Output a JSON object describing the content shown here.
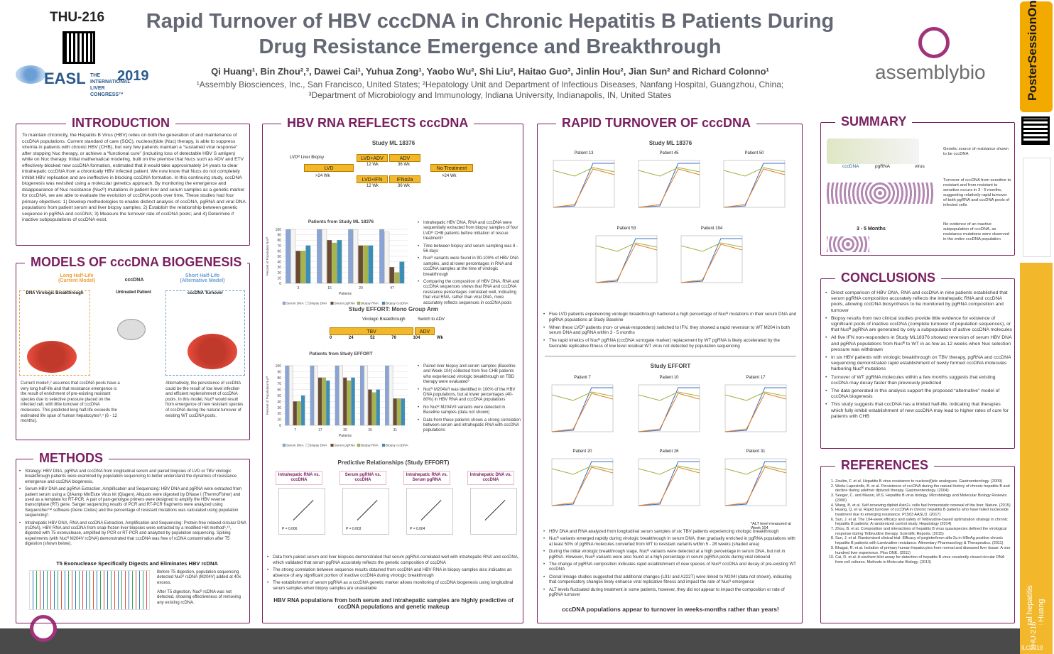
{
  "poster_id": "THU-216",
  "header": {
    "title_line1": "Rapid Turnover of HBV cccDNA in Chronic Hepatitis B Patients During",
    "title_line2": "Drug Resistance Emergence and Breakthrough",
    "authors": "Qi Huang¹, Bin Zhou²,³, Dawei Cai¹, Yuhua Zong¹, Yaobo Wu², Shi Liu², Haitao Guo³, Jinlin Hou², Jian Sun² and Richard Colonno¹",
    "affil1": "¹Assembly Biosciences, Inc., San Francisco, United States; ²Hepatology Unit and Department of Infectious Diseases, Nanfang Hospital, Guangzhou, China;",
    "affil2": "³Department of Microbiology and Immunology, Indiana University, Indianapolis, IN, United States",
    "company": "assemblybio",
    "easl_word": "EASL",
    "easl_conf": "THE INTERNATIONAL LIVER CONGRESS™",
    "easl_year": "2019"
  },
  "colors": {
    "accent": "#7a2060",
    "title_gray": "#646874",
    "gold": "#f2b72b",
    "bar_blue": "#8aa4d6",
    "bar_brown": "#6b4b2f",
    "bar_olive": "#a7b548",
    "bar_teal": "#3a8fb7"
  },
  "sidebar": {
    "pso": "PosterSessionOnline",
    "vertical1": "Viral hepatitis",
    "vertical2": "Qi Huang",
    "vertical3": "THU-216",
    "vertical4": "ILC2019"
  },
  "introduction": {
    "heading": "INTRODUCTION",
    "text": "To maintain chronicity, the Hepatitis B Virus (HBV) relies on both the generation of and maintenance of cccDNA populations. Current standard of care (SOC), nucleos(t)ide (Nuc) therapy, is able to suppress viremia in patients with chronic HBV (CHB), but very few patients maintain a “sustained viral response” after stopping Nuc therapy, or achieve a “functional cure” (including loss of detectable HBV S antigen) while on Nuc therapy. Initial mathematical modeling, built on the premise that Nucs such as ADV and ETV effectively blocked new cccDNA formation, estimated that it would take approximately 14 years to clear intrahepatic cccDNA from a chronically HBV infected patient. We now know that Nucs do not completely inhibit HBV replication and are ineffective in blocking cccDNA formation. In this continuing study, cccDNA biogenesis was revisited using a molecular genetics approach. By monitoring the emergence and disappearance of Nuc resistance (Nucᴿ) mutations in patient liver and serum samples as a genetic marker for cccDNA, we are able to evaluate the evolution of cccDNA pools over time. These studies had four primary objectives: 1) Develop methodologies to enable distinct analysis of cccDNA, pgRNA and viral DNA populations from patient serum and liver biopsy samples; 2) Establish the relationship between genetic sequence in pgRNA and cccDNA; 3) Measure the turnover rate of cccDNA pools; and 4) Determine if inactive subpopulations of cccDNA exist."
  },
  "models": {
    "heading": "MODELS OF cccDNA BIOGENESIS",
    "left_label": "Long Half-Life\n(Current Model)",
    "center_label": "cccDNA",
    "right_label": "Short Half-Life\n(Alternative Model)",
    "panel1": "DNA Virologic Breakthrough",
    "panel2": "Untreated Patient",
    "panel3": "cccDNA Turnover",
    "left_text": "Current model¹,² assumes that cccDNA pools have a very long half-life and that resistance emergence is the result of enrichment of pre-existing resistant species due to selective pressure placed on the infected cell, with little turnover of cccDNA molecules. This predicted long half-life exceeds the estimated life span of human hepatocytes³,⁴ (6 - 12 months).",
    "right_text": "Alternatively, the persistence of cccDNA could be the result of low level infection and efficient replenishment of cccDNA pools. In this model, Nucᴿ would result from emergence of new resistant species of cccDNA during the natural turnover of existing WT cccDNA pools."
  },
  "methods": {
    "heading": "METHODS",
    "bullets": [
      "Strategy: HBV DNA, pgRNA and cccDNA from longitudinal serum and paired biopsies of LVD or TBV virologic breakthrough patients were examined by population sequencing to better understand the dynamics of resistance emergence and cccDNA biogenesis.",
      "Serum HBV DNA and pgRNA Extraction, Amplification and Sequencing: HBV DNA and pgRNA were extracted from patient serum using a QIAamp MinElute Virus kit (Qiagen). Aliquots were digested by DNase I (ThermoFisher) and used as a template for RT-PCR. A pair of pan-genotype primers were designed to amplify the HBV reverse transcriptase (RT) gene. Sanger sequencing results of PCR and RT-PCR fragments were analyzed using Sequencher™ software (Gene Codes) and the percentage of resistant mutations was calculated using population sequencing⁵.",
      "Intrahepatic HBV DNA, RNA and cccDNA Extraction, Amplification and Sequencing: Protein-free relaxed circular DNA (rcDNA), HBV RNA and cccDNA from snap-frozen liver biopsies were extracted by a modified Hirt method⁶,¹⁰, digested with T5 exonuclease, amplified by PCR or RT-PCR and analyzed by population sequencing. Spiking experiments (with Nucᴿ M204V rcDNA) demonstrated that cccDNA was free of rcDNA contamination after T5 digestion (shown below)."
    ],
    "t5_title": "T5 Exonuclease Specifically Digests and Eliminates HBV rcDNA",
    "t5_note1": "Before T5 digestion, population sequencing detected Nucᴿ rcDNA (M204V) added at 40x excess.",
    "t5_note2": "After T5 digestion, Nucᴿ rcDNA was not detected, showing effectiveness of removing any existing rcDNA."
  },
  "hbv_rna": {
    "heading": "HBV RNA REFLECTS cccDNA",
    "study1": "Study ML 18376",
    "flow": {
      "lvd_label": "LVDᴿ Liver Biopsy",
      "lvd": "LVD",
      "lvd_wk": ">24 Wk",
      "lvd_adv": "LVD+ADV",
      "adv": "ADV",
      "wk12a": "12 Wk",
      "wk36a": "36 Wk",
      "lvd_ifn": "LVD+IFN",
      "ifn": "IFNα2a",
      "wk12b": "12 Wk",
      "wk36b": "36 Wk",
      "no_treat": "No Treatment",
      "nt_wk": ">24 Wk"
    },
    "chart1_title": "Patients from Study ML 18376",
    "chart1_bullets": [
      "Intrahepatic HBV DNA, RNA and cccDNA were sequentially extracted from biopsy samples of four LVDᴿ CHB patients before initiation of rescue treatment⁸",
      "Time between biopsy and serum sampling was 8 - 56 days",
      "Nucᴿ variants were found in 90-100% of HBV DNA samples, and at lower percentages in RNA and cccDNA samples at the time of virologic breakthrough",
      "Comparing the composition of HBV DNA, RNA and cccDNA sequences shows that RNA and cccDNA resistance percentages correlated well, indicating that viral RNA, rather than viral DNA, more accurately reflects sequences in cccDNA pools"
    ],
    "study2": "Study EFFORT: Mono Group Arm",
    "effort_flow": {
      "label1": "Virologic Breakthrough",
      "label2": "Switch to ADV",
      "tbv": "TBV",
      "adv": "ADV",
      "ticks": [
        "0",
        "24",
        "52",
        "76",
        "104",
        "Wk"
      ]
    },
    "chart2_title": "Patients from Study EFFORT",
    "chart2_bullets": [
      "Paired liver biopsy and serum samples (Baseline and Week 104) collected from five CHB patients who experienced virologic breakthrough on TBD therapy were evaluated⁹",
      "Nucᴿ M204V/I was identified in 100% of the HBV DNA populations, but at lower percentages (40-80%) in HBV RNA and cccDNA populations",
      "No Nucᴿ M204V/I variants were detected in Baseline samples (data not shown)",
      "Data from these patients shows a strong correlation between serum and intrahepatic RNA with cccDNA populations"
    ],
    "pred_title": "Predictive Relationships (Study EFFORT)",
    "pred_panels": [
      {
        "title": "Intrahepatic RNA vs. cccDNA",
        "p": "P = 0.006"
      },
      {
        "title": "Serum pgRNA vs. cccDNA",
        "p": "P = 0.003"
      },
      {
        "title": "Intrahepatic RNA vs. Serum pgRNA",
        "p": "P = 0.004"
      },
      {
        "title": "Intrahepatic DNA vs. cccDNA",
        "p": ""
      }
    ],
    "bottom_bullets": [
      "Data from paired serum and liver biopsies demonstrated that serum pgRNA correlated well with intrahepatic RNA and cccDNA, which validated that serum pgRNA accurately reflects the genetic composition of cccDNA",
      "The strong correlation between sequence results obtained from cccDNA and HBV RNA in biopsy samples also indicates an absence of any significant portion of inactive cccDNA during virologic breakthrough",
      "The establishment of serum pgRNA as a cccDNA genetic marker allows monitoring of cccDNA biogenesis using longitudinal serum samples when biopsy samples are unavailable"
    ],
    "conclusion_line": "HBV RNA populations from both serum and intrahepatic samples are highly predictive of cccDNA populations and genetic makeup"
  },
  "chart_data": [
    {
      "type": "bar",
      "title": "Patients from Study ML 18376",
      "xlabel": "Patients",
      "ylabel": "Percent of Population Nucᴿ",
      "ylim": [
        0,
        100
      ],
      "categories": [
        "3",
        "16",
        "29",
        "47"
      ],
      "series": [
        {
          "name": "Serum DNA",
          "values": [
            100,
            100,
            100,
            100
          ]
        },
        {
          "name": "Biopsy DNA",
          "values": [
            100,
            100,
            100,
            95
          ]
        },
        {
          "name": "Serum pgRNA",
          "values": [
            60,
            80,
            70,
            30
          ]
        },
        {
          "name": "Biopsy RNA",
          "values": [
            60,
            75,
            70,
            20
          ]
        },
        {
          "name": "Biopsy cccDNA",
          "values": [
            70,
            80,
            70,
            40
          ]
        }
      ]
    },
    {
      "type": "bar",
      "title": "Patients from Study EFFORT",
      "xlabel": "Patients",
      "ylabel": "Percent of Population Nucᴿ",
      "ylim": [
        0,
        100
      ],
      "categories": [
        "7",
        "17",
        "20",
        "26",
        "31"
      ],
      "series": [
        {
          "name": "Serum DNA",
          "values": [
            100,
            100,
            100,
            100,
            100
          ]
        },
        {
          "name": "Biopsy DNA",
          "values": [
            100,
            100,
            100,
            100,
            100
          ]
        },
        {
          "name": "Serum pgRNA",
          "values": [
            40,
            80,
            80,
            60,
            45
          ]
        },
        {
          "name": "Biopsy RNA",
          "values": [
            40,
            80,
            75,
            55,
            45
          ]
        },
        {
          "name": "Biopsy cccDNA",
          "values": [
            50,
            75,
            80,
            60,
            45
          ]
        }
      ]
    }
  ],
  "rapid": {
    "heading": "RAPID TURNOVER OF cccDNA",
    "study1": "Study ML 18376",
    "patients1": [
      "Patient 13",
      "Patient 45",
      "Patient 50",
      "Patient 53",
      "Patient 194"
    ],
    "legend": [
      "Serum DNA",
      "Serum RNA",
      "Viral Titer (log)"
    ],
    "bullets1": [
      "Five LVD patients experiencing virologic breakthrough harbored a high percentage of Nucᴿ mutations in their serum DNA and pgRNA populations at Study Baseline",
      "When these LVDᴿ patients (non- or weak-responders) switched to IFN, they showed a rapid reversion to WT M204 in both serum DNA and pgRNA within 3 - 5 months",
      "The rapid kinetics of Nucᴿ pgRNA (cccDNA surrogate marker) replacement by WT pgRNA is likely accelerated by the favorable replicative fitness of low level residual WT virus not detected by population sequencing"
    ],
    "study2": "Study EFFORT",
    "patients2": [
      "Patient 7",
      "Patient 10",
      "Patient 17",
      "Patient 20",
      "Patient 26",
      "Patient 31"
    ],
    "note": "*ALT level measured at Week 104",
    "bullets2": [
      "HBV DNA and RNA analyzed from longitudinal serum samples of six TBV patients experiencing virologic breakthrough",
      "Nucᴿ variants emerged rapidly during virologic breakthrough in serum DNA, then gradually enriched in pgRNA populations with at least 50% of pgRNA molecules converted from WT to resistant variants within 5 - 28 weeks (shaded area)",
      "During the initial virologic breakthrough stage, Nucᴿ variants were detected at a high percentage in serum DNA, but not in pgRNA. However, Nucᴿ variants were also found at a high percentage in serum pgRNA pools during viral rebound",
      "The change of pgRNA composition indicates rapid establishment of new species of Nucᴿ cccDNA and decay of pre-existing WT cccDNA",
      "Clonal linkage studies suggested that additional changes (L91I and A222T) were linked to M204I (data not shown), indicating that compensatory changes likely enhance viral replicative fitness and impact the rate of Nucᴿ emergence",
      "ALT levels fluctuated during treatment in some patients, however, they did not appear to impact the composition or rate of pgRNA turnover"
    ],
    "conclusion_line": "cccDNA populations appear to turnover in weeks-months rather than years!"
  },
  "summary": {
    "heading": "SUMMARY",
    "labels": [
      "cccDNA",
      "pgRNA",
      "virus"
    ],
    "months": "3 - 5 Months",
    "text1": "Genetic source of resistance shown to be cccDNA",
    "text2": "Turnover of cccDNA from sensitive to resistant and from resistant to sensitive occurs in 3 - 5 months, suggesting relatively rapid turnover of both pgRNA and cccDNA pools of infected cells",
    "text3": "No evidence of an inactive subpopulation of cccDNA, as resistance mutations were observed in the entire cccDNA population"
  },
  "conclusions": {
    "heading": "CONCLUSIONS",
    "bullets": [
      "Direct comparison of HBV DNA, RNA and cccDNA in nine patients established that serum pgRNA composition accurately reflects the intrahepatic RNA and cccDNA pools, allowing cccDNA biosynthesis to be monitored by pgRNA composition and turnover",
      "Biopsy results from two clinical studies provide little evidence for existence of significant pools of inactive cccDNA (complete turnover of population sequences), or that Nucᴿ pgRNA are generated by only a subpopulation of active cccDNA molecules",
      "All five IFN non-responders in Study ML18376 showed reversion of serum HBV DNA and pgRNA populations from Nucᴿ to WT in as few as 12 weeks when Nuc selection pressure was withdrawn",
      "In six HBV patients with virologic breakthrough on TBV therapy, pgRNA and cccDNA sequencing demonstrated rapid establishment of newly formed cccDNA molecules harboring Nucᴿ mutations",
      "Turnover of WT pgRNA molecules within a few months suggests that existing cccDNA may decay faster than previously predicted",
      "The data generated in this analysis support the proposed “alternative” model of cccDNA biogenesis",
      "This study suggests that cccDNA has a limited half-life, indicating that therapies which fully inhibit establishment of new cccDNA may lead to higher rates of cure for patients with CHB"
    ]
  },
  "references": {
    "heading": "REFERENCES",
    "items": [
      "Zoulim, F. et al. Hepatitis B virus resistance to nucleos(t)ide analogues. Gastroenterology. (2009)",
      "Werle-Lapostolle, B. et al. Persistence of cccDNA during the natural history of chronic hepatitis B and decline during adefovir dipivoxil therapy. Gastroenterology. (2004)",
      "Seeger, C. and Mason, W.S. Hepatitis B virus biology. Microbiology and Molecular Biology Reviews. (2000)",
      "Wang, B. et al. Self-renewing diploid Axin2+ cells fuel homeostatic renewal of the liver. Nature. (2015)",
      "Huang, Q. et al. Rapid turnover of cccDNA in chronic hepatitis B patients who have failed nucleoside treatment due to emerging resistance. P1503 AASLD. (2017)",
      "Sun, J. et al. The 104-week efficacy and safety of Telbivudine-based optimization strategy in chronic hepatitis B patients: A randomized control study. Hepatology (2014)",
      "Zhou, B. et al. Composition and interactions of hepatitis B virus quasispecies defined the virological response during Telbivudine therapy. Scientific Reports. (2015)",
      "Sun, J. et al. Randomised clinical trial: Efficacy of peginterferon alfa-2a in HBeAg positive chronic hepatitis B patients with Lamivudine resistance. Alimentary Pharmacology & Therapeutics. (2011)",
      "Bhagat, R. et al. Isolation of primary human hepatocytes from normal and diseased liver tissue: A one hundred liver experience. Plos ONE. (2011)",
      "Cai, D. et al. A southern blot assay for detection of hepatitis B virus covalently closed circular DNA from cell cultures. Methods in Molecular Biology. (2013)"
    ]
  }
}
